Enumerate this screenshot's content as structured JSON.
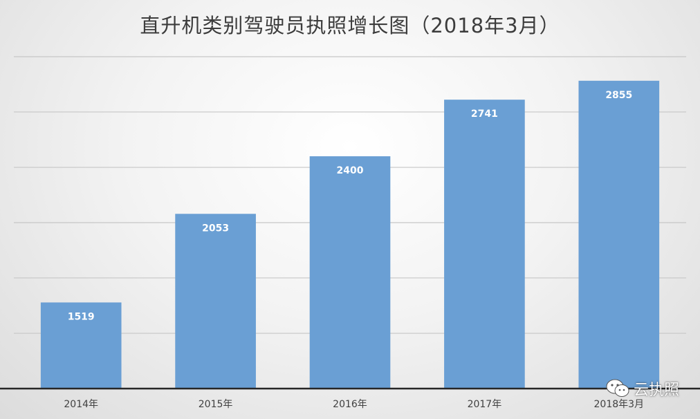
{
  "chart_data": {
    "type": "bar",
    "title": "直升机类别驾驶员执照增长图（2018年3月）",
    "categories": [
      "2014年",
      "2015年",
      "2016年",
      "2017年",
      "2018年3月"
    ],
    "values": [
      1519,
      2053,
      2400,
      2741,
      2855
    ],
    "ylim": [
      1000,
      3000
    ],
    "yticks": [
      1000,
      1333,
      1667,
      2000,
      2333,
      2667,
      3000
    ],
    "show_y_tick_labels": false,
    "grid": true,
    "legend": "none",
    "bar_color": "#6a9fd4",
    "data_label_color": "#ffffff"
  },
  "watermark": {
    "icon": "wechat-icon",
    "text": "云执照"
  }
}
